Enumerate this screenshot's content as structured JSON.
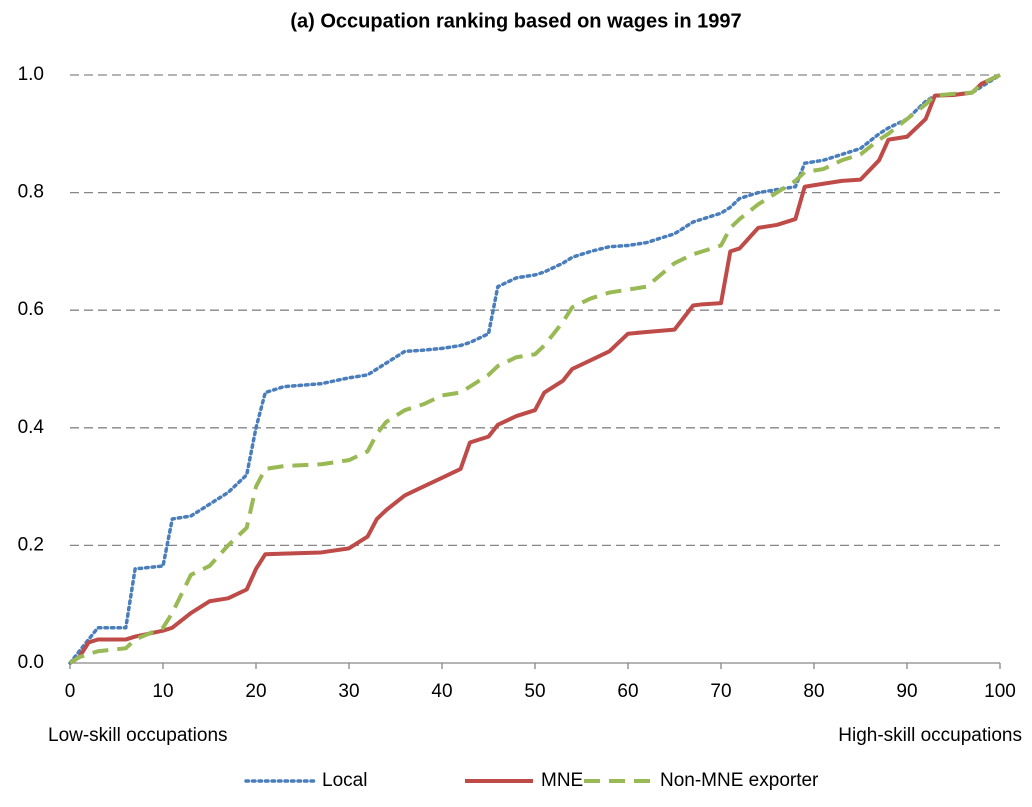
{
  "chart_data": {
    "type": "line",
    "title": "(a) Occupation ranking based on wages in 1997",
    "annotations": [
      "Low-skill occupations",
      "High-skill occupations"
    ],
    "x": [
      0,
      1,
      2,
      3,
      6,
      7,
      10,
      11,
      13,
      15,
      17,
      19,
      20,
      21,
      23,
      27,
      30,
      32,
      33,
      34,
      36,
      38,
      40,
      42,
      43,
      45,
      46,
      48,
      50,
      51,
      53,
      54,
      56,
      58,
      60,
      62,
      65,
      67,
      68,
      70,
      71,
      72,
      74,
      76,
      78,
      79,
      81,
      83,
      85,
      87,
      88,
      90,
      92,
      93,
      95,
      97,
      98,
      100
    ],
    "series": [
      {
        "name": "Local",
        "color": "#4a7ebb",
        "style": "dotted",
        "values": [
          0,
          0.02,
          0.04,
          0.06,
          0.06,
          0.16,
          0.165,
          0.245,
          0.25,
          0.27,
          0.29,
          0.32,
          0.4,
          0.46,
          0.47,
          0.475,
          0.485,
          0.49,
          0.5,
          0.51,
          0.53,
          0.532,
          0.535,
          0.54,
          0.545,
          0.56,
          0.64,
          0.655,
          0.66,
          0.665,
          0.68,
          0.69,
          0.7,
          0.708,
          0.71,
          0.715,
          0.73,
          0.75,
          0.755,
          0.765,
          0.775,
          0.79,
          0.8,
          0.805,
          0.81,
          0.85,
          0.855,
          0.865,
          0.875,
          0.9,
          0.91,
          0.925,
          0.955,
          0.965,
          0.967,
          0.97,
          0.98,
          1.0
        ]
      },
      {
        "name": "MNE",
        "color": "#be4b48",
        "style": "solid",
        "values": [
          0,
          0.01,
          0.035,
          0.04,
          0.04,
          0.045,
          0.055,
          0.06,
          0.085,
          0.105,
          0.11,
          0.125,
          0.16,
          0.185,
          0.186,
          0.188,
          0.195,
          0.215,
          0.245,
          0.26,
          0.285,
          0.3,
          0.315,
          0.33,
          0.375,
          0.385,
          0.405,
          0.42,
          0.43,
          0.46,
          0.48,
          0.5,
          0.515,
          0.53,
          0.56,
          0.563,
          0.567,
          0.608,
          0.61,
          0.612,
          0.7,
          0.705,
          0.74,
          0.745,
          0.755,
          0.81,
          0.815,
          0.82,
          0.822,
          0.855,
          0.89,
          0.895,
          0.925,
          0.965,
          0.966,
          0.97,
          0.985,
          1.0
        ]
      },
      {
        "name": "Non-MNE exporter",
        "color": "#98b954",
        "style": "dashed",
        "values": [
          0,
          0.01,
          0.015,
          0.02,
          0.025,
          0.04,
          0.06,
          0.085,
          0.15,
          0.165,
          0.2,
          0.23,
          0.3,
          0.33,
          0.335,
          0.338,
          0.345,
          0.36,
          0.39,
          0.41,
          0.43,
          0.44,
          0.455,
          0.46,
          0.47,
          0.49,
          0.505,
          0.52,
          0.525,
          0.54,
          0.58,
          0.605,
          0.62,
          0.63,
          0.635,
          0.64,
          0.68,
          0.695,
          0.7,
          0.71,
          0.74,
          0.755,
          0.78,
          0.8,
          0.82,
          0.835,
          0.84,
          0.855,
          0.865,
          0.89,
          0.9,
          0.925,
          0.95,
          0.965,
          0.968,
          0.97,
          0.985,
          1.0
        ]
      }
    ],
    "xlim": [
      0,
      100
    ],
    "xticks": [
      0,
      10,
      20,
      30,
      40,
      50,
      60,
      70,
      80,
      90,
      100
    ],
    "ylim": [
      0,
      1
    ],
    "yticks": [
      {
        "value": 0,
        "label": "0.0"
      },
      0.2,
      0.4,
      0.6,
      0.8,
      {
        "value": 1,
        "label": "1.0"
      }
    ],
    "grid": true,
    "legend": "bottom"
  }
}
